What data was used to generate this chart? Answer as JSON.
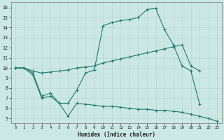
{
  "xlabel": "Humidex (Indice chaleur)",
  "bg_color": "#cce8e4",
  "line_color": "#1e7a6a",
  "grid_color": "#b8d8d2",
  "xlim": [
    -0.5,
    23.5
  ],
  "ylim": [
    4.5,
    16.5
  ],
  "xticks": [
    0,
    1,
    2,
    3,
    4,
    5,
    6,
    7,
    8,
    9,
    10,
    11,
    12,
    13,
    14,
    15,
    16,
    17,
    18,
    19,
    20,
    21,
    22,
    23
  ],
  "yticks": [
    5,
    6,
    7,
    8,
    9,
    10,
    11,
    12,
    13,
    14,
    15,
    16
  ],
  "line_max": {
    "x": [
      0,
      1,
      2,
      3,
      4,
      5,
      6,
      7,
      8,
      9,
      10,
      11,
      12,
      13,
      14,
      15,
      16,
      17,
      18,
      19,
      20,
      21
    ],
    "y": [
      10.0,
      10.0,
      9.5,
      7.2,
      7.5,
      6.5,
      6.5,
      7.8,
      9.5,
      9.8,
      14.2,
      14.5,
      14.7,
      14.8,
      15.0,
      15.8,
      15.9,
      13.8,
      12.3,
      10.2,
      9.7,
      6.4
    ]
  },
  "line_avg": {
    "x": [
      0,
      1,
      2,
      3,
      4,
      5,
      6,
      7,
      8,
      9,
      10,
      11,
      12,
      13,
      14,
      15,
      16,
      17,
      18,
      19,
      20,
      21
    ],
    "y": [
      10.0,
      10.0,
      9.7,
      9.5,
      9.6,
      9.7,
      9.8,
      10.0,
      10.1,
      10.2,
      10.5,
      10.7,
      10.9,
      11.1,
      11.3,
      11.5,
      11.7,
      11.9,
      12.1,
      12.3,
      10.2,
      9.7
    ]
  },
  "line_min": {
    "x": [
      0,
      1,
      2,
      3,
      4,
      5,
      6,
      7,
      8,
      9,
      10,
      11,
      12,
      13,
      14,
      15,
      16,
      17,
      18,
      19,
      20,
      21,
      22,
      23
    ],
    "y": [
      10.0,
      10.0,
      9.3,
      7.0,
      7.2,
      6.5,
      5.2,
      6.5,
      6.4,
      6.3,
      6.2,
      6.2,
      6.1,
      6.0,
      5.9,
      5.9,
      5.8,
      5.8,
      5.7,
      5.6,
      5.4,
      5.2,
      5.0,
      4.7
    ]
  }
}
